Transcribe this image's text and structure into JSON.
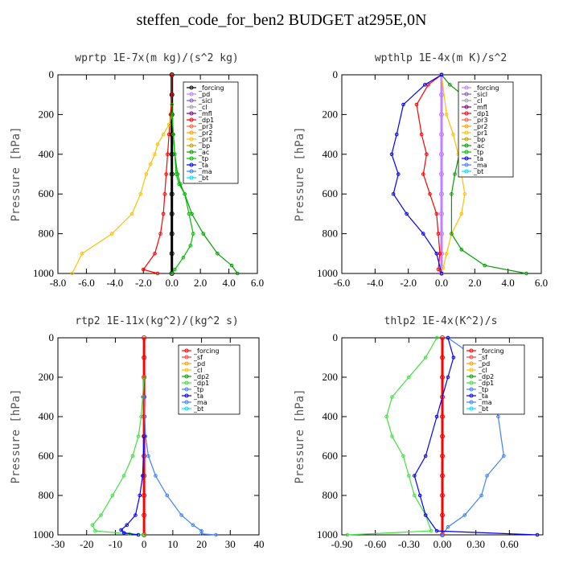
{
  "title": "steffen_code_for_ben2  BUDGET at295E,0N",
  "chart_data": [
    {
      "type": "line",
      "title": "wprtp  1E-7x(m kg)/(s^2 kg)",
      "ylabel": "Pressure [hPa]",
      "xlim": [
        -8,
        6
      ],
      "ylim": [
        1000,
        0
      ],
      "xticks": [
        -8,
        -6,
        -4,
        -2,
        0,
        2,
        4,
        6
      ],
      "xtick_labels": [
        "-8.0",
        "-6.0",
        "-4.0",
        "-2.0",
        "0.0",
        "2.0",
        "4.0",
        "6.0"
      ],
      "yticks": [
        0,
        200,
        400,
        600,
        800,
        1000
      ],
      "ytick_labels": [
        "0",
        "200",
        "400",
        "600",
        "800",
        "1000"
      ],
      "legend_position": "top-right",
      "legend": [
        "_forcing",
        "_pd",
        "_sicl",
        "_cl",
        "_mfl",
        "_dp1",
        "_pr3",
        "_pr2",
        "_pr1",
        "_bp",
        "_ac",
        "_tp",
        "_ta",
        "_ma",
        "_bt"
      ],
      "colors": [
        "#000000",
        "#c080ff",
        "#8060c0",
        "#a0a0a0",
        "#800080",
        "#ff0000",
        "#ff6040",
        "#ffa000",
        "#ffc000",
        "#c0a000",
        "#00a000",
        "#00c000",
        "#0000ff",
        "#4080ff",
        "#00e0ff"
      ],
      "series": [
        {
          "name": "_forcing",
          "x": [
            0,
            0,
            0,
            0,
            0,
            0,
            0,
            0,
            0,
            0,
            0
          ],
          "y": [
            0,
            100,
            200,
            300,
            400,
            500,
            600,
            700,
            800,
            900,
            1000
          ]
        },
        {
          "name": "_dp1",
          "x": [
            0,
            0,
            -0.1,
            -0.2,
            -0.3,
            -0.4,
            -0.5,
            -0.6,
            -0.8,
            -1.2,
            -2.0,
            -1.0
          ],
          "y": [
            0,
            100,
            200,
            300,
            400,
            500,
            600,
            700,
            800,
            900,
            980,
            1000
          ]
        },
        {
          "name": "_pr1",
          "x": [
            0,
            -0.2,
            -0.6,
            -1.0,
            -1.2,
            -1.5,
            -1.8,
            -2.2,
            -2.8,
            -4.2,
            -6.3,
            -7.0
          ],
          "y": [
            200,
            250,
            300,
            350,
            400,
            450,
            500,
            600,
            700,
            800,
            900,
            1000
          ]
        },
        {
          "name": "_ac",
          "x": [
            0,
            0.1,
            0.2,
            0.4,
            0.6,
            0.9,
            1.4,
            2.2,
            3.2,
            4.2,
            4.6
          ],
          "y": [
            200,
            300,
            400,
            500,
            550,
            600,
            700,
            800,
            900,
            960,
            1000
          ]
        },
        {
          "name": "_tp",
          "x": [
            0,
            0.1,
            0.2,
            0.3,
            0.5,
            0.9,
            1.2,
            1.5,
            1.3,
            0.8,
            0.2,
            0
          ],
          "y": [
            150,
            300,
            400,
            500,
            550,
            600,
            700,
            800,
            860,
            920,
            980,
            1000
          ]
        }
      ]
    },
    {
      "type": "line",
      "title": "wpthlp  1E-4x(m K)/s^2",
      "ylabel": "Pressure [hPa]",
      "xlim": [
        -6,
        6
      ],
      "ylim": [
        1000,
        0
      ],
      "xticks": [
        -6,
        -4,
        -2,
        0,
        2,
        4,
        6
      ],
      "xtick_labels": [
        "-6.0",
        "-4.0",
        "-2.0",
        "0.0",
        "2.0",
        "4.0",
        "6.0"
      ],
      "yticks": [
        0,
        200,
        400,
        600,
        800,
        1000
      ],
      "ytick_labels": [
        "0",
        "200",
        "400",
        "600",
        "800",
        "1000"
      ],
      "legend_position": "top-right",
      "legend": [
        "_forcing",
        "_sicl",
        "_cl",
        "_mfl",
        "_dp1",
        "_pr3",
        "_pr2",
        "_pr1",
        "_bp",
        "_ac",
        "_tp",
        "_ta",
        "_ma",
        "_bt"
      ],
      "colors": [
        "#c080ff",
        "#8060c0",
        "#a0a0a0",
        "#800080",
        "#ff0000",
        "#ff6040",
        "#ffa000",
        "#ffc000",
        "#c0a000",
        "#00a000",
        "#00c000",
        "#0000ff",
        "#4080ff",
        "#00e0ff"
      ],
      "series": [
        {
          "name": "_forcing",
          "x": [
            0,
            0,
            0,
            0,
            0,
            0,
            0,
            0,
            0,
            0,
            0
          ],
          "y": [
            0,
            100,
            200,
            300,
            400,
            500,
            600,
            700,
            800,
            900,
            1000
          ]
        },
        {
          "name": "_dp1",
          "x": [
            0,
            -0.8,
            -1.5,
            -1.2,
            -0.9,
            -1.1,
            -0.7,
            -0.3,
            -0.2,
            -0.1,
            -0.2,
            0
          ],
          "y": [
            0,
            50,
            150,
            300,
            400,
            500,
            600,
            700,
            800,
            900,
            980,
            1000
          ]
        },
        {
          "name": "_pr1",
          "x": [
            0,
            0.3,
            0.7,
            1.0,
            1.4,
            1.2,
            0.6,
            0.3,
            0.1,
            0
          ],
          "y": [
            0,
            200,
            300,
            400,
            600,
            700,
            800,
            900,
            970,
            1000
          ]
        },
        {
          "name": "_ac",
          "x": [
            0,
            0.5,
            2.0,
            1.6,
            1.2,
            0.8,
            0.6,
            0.6,
            1.2,
            2.6,
            5.1
          ],
          "y": [
            0,
            50,
            150,
            250,
            350,
            500,
            600,
            800,
            880,
            960,
            1000
          ]
        },
        {
          "name": "_ta",
          "x": [
            0,
            -1.0,
            -2.3,
            -2.7,
            -3.0,
            -2.6,
            -2.9,
            -2.1,
            -1.1,
            -0.3,
            0
          ],
          "y": [
            0,
            50,
            150,
            300,
            400,
            500,
            600,
            700,
            800,
            900,
            1000
          ]
        }
      ]
    },
    {
      "type": "line",
      "title": "rtp2  1E-11x(kg^2)/(kg^2 s)",
      "ylabel": "Pressure [hPa]",
      "xlim": [
        -30,
        40
      ],
      "ylim": [
        1000,
        0
      ],
      "xticks": [
        -30,
        -20,
        -10,
        0,
        10,
        20,
        30,
        40
      ],
      "xtick_labels": [
        "-30",
        "-20",
        "-10",
        "0",
        "10",
        "20",
        "30",
        "40"
      ],
      "yticks": [
        0,
        200,
        400,
        600,
        800,
        1000
      ],
      "ytick_labels": [
        "0",
        "200",
        "400",
        "600",
        "800",
        "1000"
      ],
      "legend_position": "top-right",
      "legend": [
        "_forcing",
        "_sf",
        "_pd",
        "_cl",
        "_dp2",
        "_dp1",
        "_tp",
        "_ta",
        "_ma",
        "_bt"
      ],
      "colors": [
        "#ff0000",
        "#ff4040",
        "#ffa000",
        "#ffc000",
        "#00a000",
        "#40e040",
        "#4080ff",
        "#0000ff",
        "#4080ff",
        "#00e0ff"
      ],
      "series": [
        {
          "name": "_forcing",
          "x": [
            0,
            0,
            0,
            0,
            0,
            0,
            0,
            0,
            0,
            0,
            0
          ],
          "y": [
            0,
            100,
            200,
            300,
            400,
            500,
            600,
            700,
            800,
            900,
            1000
          ]
        },
        {
          "name": "_dp1",
          "x": [
            0,
            -0.5,
            -1.0,
            -2.0,
            -4.0,
            -7.0,
            -11.0,
            -15.0,
            -18.0,
            -17.0,
            -5.0,
            0
          ],
          "y": [
            200,
            300,
            400,
            500,
            600,
            700,
            800,
            900,
            950,
            980,
            995,
            1000
          ]
        },
        {
          "name": "_tp",
          "x": [
            0,
            0.5,
            1.5,
            4.0,
            8.0,
            13.0,
            17.0,
            20.0,
            20.0,
            25.0
          ],
          "y": [
            300,
            500,
            600,
            700,
            800,
            900,
            950,
            980,
            995,
            1000
          ]
        },
        {
          "name": "_ta",
          "x": [
            0,
            -0.5,
            -1.5,
            -3.0,
            -6.0,
            -8.0,
            -7.0,
            -2.0
          ],
          "y": [
            500,
            700,
            800,
            900,
            950,
            975,
            990,
            1000
          ]
        }
      ]
    },
    {
      "type": "line",
      "title": "thlp2  1E-4x(K^2)/s",
      "ylabel": "Pressure [hPa]",
      "xlim": [
        -0.9,
        0.9
      ],
      "ylim": [
        1000,
        0
      ],
      "xticks": [
        -0.9,
        -0.6,
        -0.3,
        0,
        0.3,
        0.6
      ],
      "xtick_labels": [
        "-0.90",
        "-0.60",
        "-0.30",
        "0.00",
        "0.30",
        "0.60"
      ],
      "yticks": [
        0,
        200,
        400,
        600,
        800,
        1000
      ],
      "ytick_labels": [
        "0",
        "200",
        "400",
        "600",
        "800",
        "1000"
      ],
      "legend_position": "top-right",
      "legend": [
        "_forcing",
        "_sf",
        "_pd",
        "_cl",
        "_dp2",
        "_dp1",
        "_tp",
        "_ta",
        "_ma",
        "_bt"
      ],
      "colors": [
        "#ff0000",
        "#ff4040",
        "#ffa000",
        "#ffc000",
        "#00a000",
        "#40e040",
        "#4080ff",
        "#0000ff",
        "#4080ff",
        "#00e0ff"
      ],
      "series": [
        {
          "name": "_forcing",
          "x": [
            0,
            0,
            0,
            0,
            0,
            0,
            0,
            0,
            0,
            0,
            0
          ],
          "y": [
            0,
            100,
            200,
            300,
            400,
            500,
            600,
            700,
            800,
            900,
            1000
          ]
        },
        {
          "name": "_dp1",
          "x": [
            -0.05,
            -0.15,
            -0.3,
            -0.45,
            -0.5,
            -0.45,
            -0.35,
            -0.3,
            -0.25,
            -0.15,
            -0.1,
            -0.85
          ],
          "y": [
            0,
            100,
            200,
            300,
            400,
            500,
            600,
            700,
            800,
            900,
            980,
            1000
          ]
        },
        {
          "name": "_tp",
          "x": [
            0.05,
            0.3,
            0.4,
            0.5,
            0.55,
            0.4,
            0.35,
            0.2,
            0.05,
            0
          ],
          "y": [
            0,
            100,
            200,
            400,
            600,
            700,
            800,
            900,
            960,
            1000
          ]
        },
        {
          "name": "_ta",
          "x": [
            0.05,
            0.1,
            0.05,
            -0.05,
            -0.15,
            -0.25,
            -0.2,
            -0.15,
            -0.05,
            0.85
          ],
          "y": [
            0,
            100,
            200,
            400,
            600,
            700,
            800,
            900,
            980,
            1000
          ]
        }
      ]
    }
  ]
}
